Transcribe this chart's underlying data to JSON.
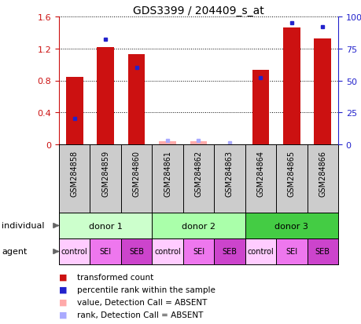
{
  "title": "GDS3399 / 204409_s_at",
  "samples": [
    "GSM284858",
    "GSM284859",
    "GSM284860",
    "GSM284861",
    "GSM284862",
    "GSM284863",
    "GSM284864",
    "GSM284865",
    "GSM284866"
  ],
  "red_values": [
    0.84,
    1.22,
    1.13,
    0.04,
    0.04,
    0.0,
    0.93,
    1.46,
    1.33
  ],
  "blue_values_pct": [
    20,
    82,
    60,
    3,
    3,
    1,
    52,
    95,
    92
  ],
  "red_absent": [
    false,
    false,
    false,
    true,
    true,
    true,
    false,
    false,
    false
  ],
  "blue_absent": [
    false,
    false,
    false,
    true,
    true,
    true,
    false,
    false,
    false
  ],
  "ylim_left": [
    0,
    1.6
  ],
  "ylim_right": [
    0,
    100
  ],
  "yticks_left": [
    0,
    0.4,
    0.8,
    1.2,
    1.6
  ],
  "yticks_right": [
    0,
    25,
    50,
    75,
    100
  ],
  "ytick_labels_left": [
    "0",
    "0.4",
    "0.8",
    "1.2",
    "1.6"
  ],
  "ytick_labels_right": [
    "0",
    "25",
    "50",
    "75",
    "100%"
  ],
  "donors": [
    {
      "label": "donor 1",
      "start": 0,
      "end": 3,
      "color": "#ccffcc"
    },
    {
      "label": "donor 2",
      "start": 3,
      "end": 6,
      "color": "#aaffaa"
    },
    {
      "label": "donor 3",
      "start": 6,
      "end": 9,
      "color": "#44cc44"
    }
  ],
  "agents": [
    "control",
    "SEI",
    "SEB",
    "control",
    "SEI",
    "SEB",
    "control",
    "SEI",
    "SEB"
  ],
  "agent_colors": [
    "#ffccff",
    "#ee77ee",
    "#cc44cc",
    "#ffccff",
    "#ee77ee",
    "#cc44cc",
    "#ffccff",
    "#ee77ee",
    "#cc44cc"
  ],
  "bar_color_red": "#cc1111",
  "bar_color_blue": "#2222cc",
  "bar_color_red_absent": "#ffaaaa",
  "bar_color_blue_absent": "#aaaaff",
  "bar_width": 0.55,
  "bg_plot": "white",
  "bg_sample_row": "#cccccc",
  "legend_items": [
    {
      "label": "transformed count",
      "color": "#cc1111"
    },
    {
      "label": "percentile rank within the sample",
      "color": "#2222cc"
    },
    {
      "label": "value, Detection Call = ABSENT",
      "color": "#ffaaaa"
    },
    {
      "label": "rank, Detection Call = ABSENT",
      "color": "#aaaaff"
    }
  ],
  "individual_label": "individual",
  "agent_label": "agent"
}
